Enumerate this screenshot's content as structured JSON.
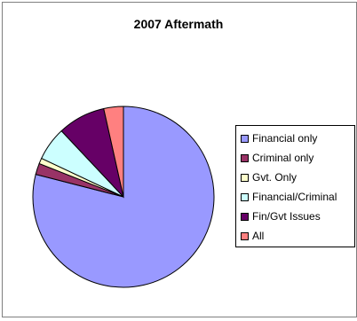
{
  "chart_data": {
    "type": "pie",
    "title": "2007 Aftermath",
    "legend_position": "right",
    "slices": [
      {
        "name": "Financial only",
        "value": 79.0,
        "color": "#9999ff"
      },
      {
        "name": "Criminal only",
        "value": 2.0,
        "color": "#993366"
      },
      {
        "name": "Gvt. Only",
        "value": 1.0,
        "color": "#ffffcc"
      },
      {
        "name": "Financial/Criminal",
        "value": 6.0,
        "color": "#ccffff"
      },
      {
        "name": "Fin/Gvt Issues",
        "value": 8.5,
        "color": "#660066"
      },
      {
        "name": "All",
        "value": 3.5,
        "color": "#ff8080"
      }
    ]
  }
}
